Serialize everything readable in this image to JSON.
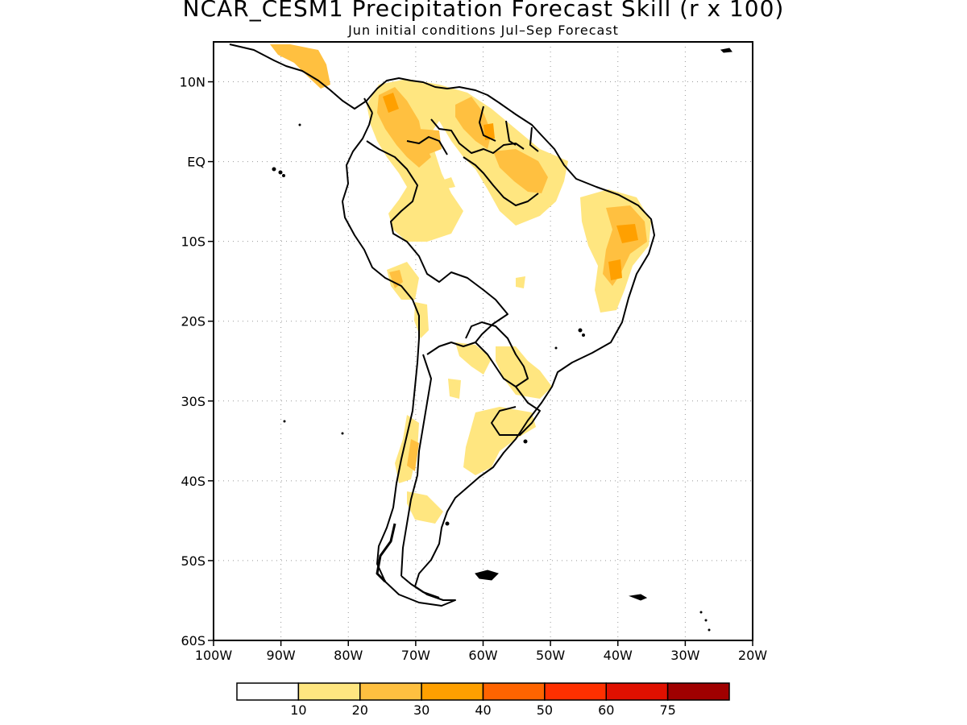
{
  "title": "NCAR_CESM1 Precipitation Forecast Skill (r x 100)",
  "subtitle": "Jun initial conditions  Jul–Sep Forecast",
  "map": {
    "lon_range": [
      -100,
      -20
    ],
    "lat_range": [
      -60,
      15
    ],
    "grid": true,
    "lat_ticks": [
      {
        "value": 10,
        "label": "10N"
      },
      {
        "value": 0,
        "label": "EQ"
      },
      {
        "value": -10,
        "label": "10S"
      },
      {
        "value": -20,
        "label": "20S"
      },
      {
        "value": -30,
        "label": "30S"
      },
      {
        "value": -40,
        "label": "40S"
      },
      {
        "value": -50,
        "label": "50S"
      },
      {
        "value": -60,
        "label": "60S"
      }
    ],
    "lon_ticks": [
      {
        "value": -100,
        "label": "100W"
      },
      {
        "value": -90,
        "label": "90W"
      },
      {
        "value": -80,
        "label": "80W"
      },
      {
        "value": -70,
        "label": "70W"
      },
      {
        "value": -60,
        "label": "60W"
      },
      {
        "value": -50,
        "label": "50W"
      },
      {
        "value": -40,
        "label": "40W"
      },
      {
        "value": -30,
        "label": "30W"
      },
      {
        "value": -20,
        "label": "20W"
      }
    ]
  },
  "colorbar": {
    "boundary_labels": [
      "10",
      "20",
      "30",
      "40",
      "50",
      "60",
      "75"
    ],
    "colors": [
      "#ffffff",
      "#ffe680",
      "#ffc040",
      "#ffa000",
      "#ff6400",
      "#ff3000",
      "#e01000",
      "#a00000"
    ]
  }
}
